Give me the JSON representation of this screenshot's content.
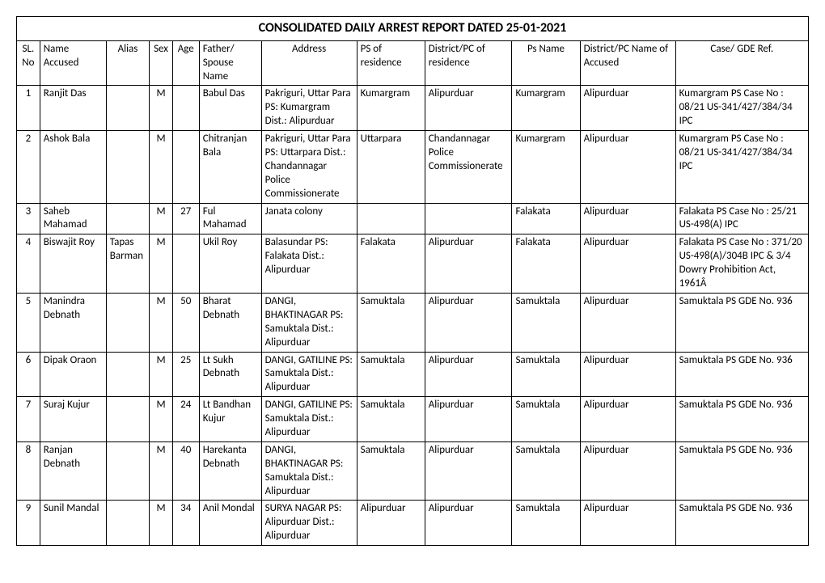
{
  "title": "CONSOLIDATED DAILY ARREST REPORT DATED 25-01-2021",
  "columns": [
    "SL. No",
    "Name Accused",
    "Alias",
    "Sex",
    "Age",
    "Father/ Spouse Name",
    "Address",
    "PS of residence",
    "District/PC of residence",
    "Ps Name",
    "District/PC Name of Accused",
    "Case/ GDE Ref."
  ],
  "rows": [
    {
      "sl": "1",
      "name": "Ranjit  Das",
      "alias": "",
      "sex": "M",
      "age": "",
      "fsn": "Babul Das",
      "addr": "Pakriguri, Uttar Para PS: Kumargram Dist.: Alipurduar",
      "psr": "Kumargram",
      "dist": "Alipurduar",
      "psn": "Kumargram",
      "dacc": "Alipurduar",
      "case": "Kumargram PS Case No : 08/21 US-341/427/384/34 IPC"
    },
    {
      "sl": "2",
      "name": "Ashok  Bala",
      "alias": "",
      "sex": "M",
      "age": "",
      "fsn": "Chitranjan Bala",
      "addr": "Pakriguri, Uttar Para PS: Uttarpara Dist.: Chandannagar Police Commissionerate",
      "psr": "Uttarpara",
      "dist": "Chandannagar Police Commissionerate",
      "psn": "Kumargram",
      "dacc": "Alipurduar",
      "case": "Kumargram PS Case No : 08/21 US-341/427/384/34 IPC"
    },
    {
      "sl": "3",
      "name": "Saheb  Mahamad",
      "alias": "",
      "sex": "M",
      "age": "27",
      "fsn": "Ful Mahamad",
      "addr": "Janata colony",
      "psr": "",
      "dist": "",
      "psn": "Falakata",
      "dacc": "Alipurduar",
      "case": "Falakata PS Case No : 25/21 US-498(A) IPC"
    },
    {
      "sl": "4",
      "name": "Biswajit  Roy",
      "alias": "Tapas Barman",
      "sex": "M",
      "age": "",
      "fsn": "Ukil Roy",
      "addr": "Balasundar PS: Falakata Dist.: Alipurduar",
      "psr": "Falakata",
      "dist": "Alipurduar",
      "psn": "Falakata",
      "dacc": "Alipurduar",
      "case": "Falakata PS Case No : 371/20 US-498(A)/304B IPC &  3/4  Dowry Prohibition Act, 1961Â"
    },
    {
      "sl": "5",
      "name": "Manindra  Debnath",
      "alias": "",
      "sex": "M",
      "age": "50",
      "fsn": "Bharat Debnath",
      "addr": "DANGI, BHAKTINAGAR PS: Samuktala Dist.: Alipurduar",
      "psr": "Samuktala",
      "dist": "Alipurduar",
      "psn": "Samuktala",
      "dacc": "Alipurduar",
      "case": "Samuktala PS  GDE No. 936"
    },
    {
      "sl": "6",
      "name": "Dipak  Oraon",
      "alias": "",
      "sex": "M",
      "age": "25",
      "fsn": "Lt Sukh Debnath",
      "addr": "DANGI, GATILINE PS: Samuktala Dist.: Alipurduar",
      "psr": "Samuktala",
      "dist": "Alipurduar",
      "psn": "Samuktala",
      "dacc": "Alipurduar",
      "case": "Samuktala PS  GDE No. 936"
    },
    {
      "sl": "7",
      "name": "Suraj  Kujur",
      "alias": "",
      "sex": "M",
      "age": "24",
      "fsn": "Lt Bandhan Kujur",
      "addr": "DANGI, GATILINE PS: Samuktala Dist.: Alipurduar",
      "psr": "Samuktala",
      "dist": "Alipurduar",
      "psn": "Samuktala",
      "dacc": "Alipurduar",
      "case": "Samuktala PS  GDE No. 936"
    },
    {
      "sl": "8",
      "name": "Ranjan  Debnath",
      "alias": "",
      "sex": "M",
      "age": "40",
      "fsn": "Harekanta Debnath",
      "addr": "DANGI, BHAKTINAGAR PS: Samuktala Dist.: Alipurduar",
      "psr": "Samuktala",
      "dist": "Alipurduar",
      "psn": "Samuktala",
      "dacc": "Alipurduar",
      "case": "Samuktala PS  GDE No. 936"
    },
    {
      "sl": "9",
      "name": "Sunil  Mandal",
      "alias": "",
      "sex": "M",
      "age": "34",
      "fsn": "Anil Mondal",
      "addr": "SURYA NAGAR PS: Alipurduar Dist.: Alipurduar",
      "psr": "Alipurduar",
      "dist": "Alipurduar",
      "psn": "Samuktala",
      "dacc": "Alipurduar",
      "case": "Samuktala PS  GDE No. 936"
    }
  ]
}
